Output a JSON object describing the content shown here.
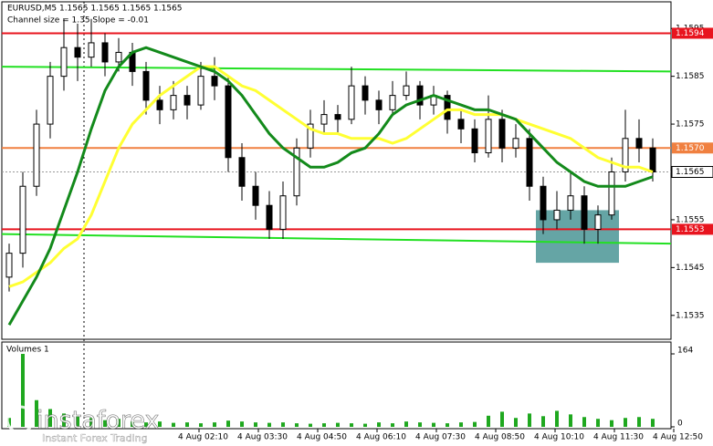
{
  "chart_data": {
    "type": "candlestick",
    "title": "EURUSD,M5  1.1565 1.1565 1.1565 1.1565",
    "subtitle": "Channel size = 1.35 Slope = -0.01",
    "candles": [
      [
        1.1543,
        1.155,
        1.154,
        1.1548
      ],
      [
        1.1548,
        1.1565,
        1.1545,
        1.1562
      ],
      [
        1.1562,
        1.1578,
        1.156,
        1.1575
      ],
      [
        1.1575,
        1.1588,
        1.1572,
        1.1585
      ],
      [
        1.1585,
        1.1597,
        1.1582,
        1.1591
      ],
      [
        1.1591,
        1.1596,
        1.1584,
        1.1589
      ],
      [
        1.1589,
        1.1597,
        1.1587,
        1.1592
      ],
      [
        1.1592,
        1.1594,
        1.1585,
        1.1588
      ],
      [
        1.1588,
        1.1593,
        1.1586,
        1.159
      ],
      [
        1.159,
        1.1592,
        1.1583,
        1.1586
      ],
      [
        1.1586,
        1.1588,
        1.1577,
        1.158
      ],
      [
        1.158,
        1.1583,
        1.1575,
        1.1578
      ],
      [
        1.1578,
        1.1584,
        1.1576,
        1.1581
      ],
      [
        1.1581,
        1.1583,
        1.1576,
        1.1579
      ],
      [
        1.1579,
        1.1588,
        1.1578,
        1.1585
      ],
      [
        1.1585,
        1.1589,
        1.158,
        1.1583
      ],
      [
        1.1583,
        1.1585,
        1.1565,
        1.1568
      ],
      [
        1.1568,
        1.1571,
        1.1559,
        1.1562
      ],
      [
        1.1562,
        1.1565,
        1.1555,
        1.1558
      ],
      [
        1.1558,
        1.1561,
        1.1551,
        1.1553
      ],
      [
        1.1553,
        1.1563,
        1.1551,
        1.156
      ],
      [
        1.156,
        1.1572,
        1.1558,
        1.157
      ],
      [
        1.157,
        1.1578,
        1.1568,
        1.1575
      ],
      [
        1.1575,
        1.158,
        1.1573,
        1.1577
      ],
      [
        1.1577,
        1.1579,
        1.1573,
        1.1576
      ],
      [
        1.1576,
        1.1587,
        1.1575,
        1.1583
      ],
      [
        1.1583,
        1.1585,
        1.1577,
        1.158
      ],
      [
        1.158,
        1.1582,
        1.1575,
        1.1578
      ],
      [
        1.1578,
        1.1584,
        1.1577,
        1.1581
      ],
      [
        1.1581,
        1.1586,
        1.158,
        1.1583
      ],
      [
        1.1583,
        1.1584,
        1.1576,
        1.1579
      ],
      [
        1.1579,
        1.1583,
        1.1577,
        1.1581
      ],
      [
        1.1581,
        1.1582,
        1.1573,
        1.1576
      ],
      [
        1.1576,
        1.1578,
        1.1571,
        1.1574
      ],
      [
        1.1574,
        1.1576,
        1.1567,
        1.1569
      ],
      [
        1.1569,
        1.1581,
        1.1568,
        1.1576
      ],
      [
        1.1576,
        1.1578,
        1.1567,
        1.157
      ],
      [
        1.157,
        1.1575,
        1.1568,
        1.1572
      ],
      [
        1.1572,
        1.1574,
        1.1559,
        1.1562
      ],
      [
        1.1562,
        1.1564,
        1.1552,
        1.1555
      ],
      [
        1.1555,
        1.1561,
        1.1553,
        1.1557
      ],
      [
        1.1557,
        1.1565,
        1.1555,
        1.156
      ],
      [
        1.156,
        1.1562,
        1.155,
        1.1553
      ],
      [
        1.1553,
        1.1558,
        1.155,
        1.1556
      ],
      [
        1.1556,
        1.1568,
        1.1555,
        1.1565
      ],
      [
        1.1565,
        1.1578,
        1.1563,
        1.1572
      ],
      [
        1.1572,
        1.1576,
        1.1567,
        1.157
      ],
      [
        1.157,
        1.1572,
        1.1563,
        1.1565
      ]
    ],
    "series": [
      {
        "name": "MA fast",
        "color": "#ffff33",
        "values": [
          1.1541,
          1.1542,
          1.1544,
          1.1546,
          1.1549,
          1.1551,
          1.1556,
          1.1563,
          1.157,
          1.1575,
          1.1578,
          1.1581,
          1.1583,
          1.1585,
          1.1587,
          1.1587,
          1.1585,
          1.1583,
          1.1582,
          1.158,
          1.1578,
          1.1576,
          1.1574,
          1.1573,
          1.1573,
          1.1572,
          1.1572,
          1.1572,
          1.1571,
          1.1572,
          1.1574,
          1.1576,
          1.1578,
          1.1578,
          1.1577,
          1.1577,
          1.1577,
          1.1576,
          1.1575,
          1.1574,
          1.1573,
          1.1572,
          1.157,
          1.1568,
          1.1567,
          1.1566,
          1.1566,
          1.1565
        ]
      },
      {
        "name": "MA slow",
        "color": "#138a1b",
        "values": [
          1.1533,
          1.1538,
          1.1543,
          1.1549,
          1.1557,
          1.1565,
          1.1574,
          1.1582,
          1.1587,
          1.159,
          1.1591,
          1.159,
          1.1589,
          1.1588,
          1.1587,
          1.1586,
          1.1584,
          1.1581,
          1.1577,
          1.1573,
          1.157,
          1.1568,
          1.1566,
          1.1566,
          1.1567,
          1.1569,
          1.157,
          1.1573,
          1.1577,
          1.1579,
          1.158,
          1.1581,
          1.158,
          1.1579,
          1.1578,
          1.1578,
          1.1577,
          1.1576,
          1.1573,
          1.157,
          1.1567,
          1.1565,
          1.1563,
          1.1562,
          1.1562,
          1.1562,
          1.1563,
          1.1564
        ]
      }
    ],
    "volumes": [
      20,
      164,
      60,
      40,
      30,
      25,
      20,
      15,
      18,
      12,
      10,
      12,
      9,
      10,
      8,
      10,
      14,
      12,
      10,
      9,
      10,
      8,
      7,
      8,
      9,
      8,
      7,
      10,
      8,
      12,
      10,
      9,
      8,
      10,
      11,
      25,
      34,
      20,
      30,
      24,
      36,
      28,
      22,
      18,
      15,
      20,
      22,
      18
    ],
    "ylim": [
      1.153,
      1.16
    ],
    "yticks": [
      1.1595,
      1.1585,
      1.1575,
      1.1565,
      1.1555,
      1.1545,
      1.1535
    ],
    "levels": [
      {
        "value": 1.1594,
        "color": "#e8141e"
      },
      {
        "value": {
          "value": 1.157,
          "label": "1.1570"
        },
        "color": "#f08040"
      },
      {
        "value": 1.1553,
        "color": "#e8141e"
      }
    ],
    "current_price": 1.1565,
    "channel": [
      [
        1.1587,
        1.1586
      ],
      [
        1.1552,
        1.155
      ]
    ],
    "highlight": [
      1.1557,
      1.1546
    ],
    "volume_title": "Volumes 1",
    "volume_ylim": [
      0,
      164
    ],
    "volume_yticks": [
      0,
      164
    ],
    "xticks": [
      "4 Aug 02:10",
      "4 Aug 03:30",
      "4 Aug 04:50",
      "4 Aug 06:10",
      "4 Aug 07:30",
      "4 Aug 08:50",
      "4 Aug 10:10",
      "4 Aug 11:30",
      "4 Aug 12:50"
    ],
    "watermark": [
      "instaforex",
      "Instant Forex Trading"
    ]
  }
}
